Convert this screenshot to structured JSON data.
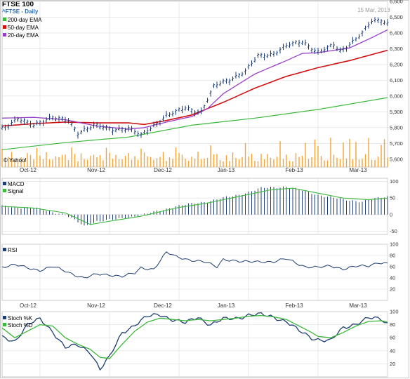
{
  "header": {
    "title": "FTSE 100",
    "subtitle": "^FTSE - Daily",
    "date": "15 Mar, 2013",
    "watermark": "© Yahoo!"
  },
  "colors": {
    "ema200": "#3cb83c",
    "ema50": "#d11111",
    "ema20": "#9a3fc9",
    "price": "#1e3d72",
    "volume": "#f2a536",
    "macd": "#1e3d72",
    "signal": "#3cb83c",
    "rsi": "#1e3d72",
    "stochK": "#1e3d72",
    "stochD": "#3cb83c",
    "grid": "#dcdcdc"
  },
  "chart_data": [
    {
      "type": "line",
      "panel": "price",
      "title": "FTSE 100",
      "ylim": [
        5550,
        6600
      ],
      "yticks": [
        "5,600",
        "5,700",
        "5,800",
        "5,900",
        "6,000",
        "6,100",
        "6,200",
        "6,300",
        "6,400",
        "6,500",
        "6,600"
      ],
      "xticks": [
        "Oct-12",
        "Nov-12",
        "Dec-12",
        "Jan-13",
        "Feb-13",
        "Mar-13"
      ],
      "grid": true,
      "legend_position": "top-left",
      "price_anchors": [
        [
          0,
          5790
        ],
        [
          5,
          5860
        ],
        [
          10,
          5810
        ],
        [
          16,
          5870
        ],
        [
          21,
          5840
        ],
        [
          24,
          5760
        ],
        [
          29,
          5820
        ],
        [
          35,
          5780
        ],
        [
          40,
          5800
        ],
        [
          44,
          5750
        ],
        [
          47,
          5790
        ],
        [
          52,
          5880
        ],
        [
          58,
          5920
        ],
        [
          60,
          5905
        ],
        [
          63,
          5900
        ],
        [
          67,
          6060
        ],
        [
          72,
          6100
        ],
        [
          77,
          6160
        ],
        [
          81,
          6250
        ],
        [
          85,
          6260
        ],
        [
          90,
          6320
        ],
        [
          95,
          6340
        ],
        [
          100,
          6280
        ],
        [
          105,
          6320
        ],
        [
          107,
          6280
        ],
        [
          110,
          6330
        ],
        [
          114,
          6400
        ],
        [
          117,
          6470
        ],
        [
          120,
          6480
        ],
        [
          122,
          6460
        ]
      ],
      "series": [
        {
          "name": "200-day EMA",
          "anchors": [
            [
              0,
              5660
            ],
            [
              20,
              5705
            ],
            [
              40,
              5740
            ],
            [
              60,
              5815
            ],
            [
              80,
              5860
            ],
            [
              100,
              5915
            ],
            [
              122,
              5990
            ]
          ]
        },
        {
          "name": "50-day EMA",
          "anchors": [
            [
              0,
              5810
            ],
            [
              10,
              5825
            ],
            [
              20,
              5835
            ],
            [
              30,
              5830
            ],
            [
              40,
              5830
            ],
            [
              45,
              5820
            ],
            [
              52,
              5845
            ],
            [
              60,
              5880
            ],
            [
              70,
              5960
            ],
            [
              80,
              6050
            ],
            [
              90,
              6125
            ],
            [
              100,
              6180
            ],
            [
              110,
              6225
            ],
            [
              122,
              6290
            ]
          ]
        },
        {
          "name": "20-day EMA",
          "anchors": [
            [
              0,
              5860
            ],
            [
              10,
              5865
            ],
            [
              20,
              5850
            ],
            [
              30,
              5810
            ],
            [
              40,
              5790
            ],
            [
              45,
              5800
            ],
            [
              52,
              5835
            ],
            [
              60,
              5870
            ],
            [
              65,
              5920
            ],
            [
              70,
              6015
            ],
            [
              80,
              6140
            ],
            [
              90,
              6225
            ],
            [
              95,
              6270
            ],
            [
              100,
              6275
            ],
            [
              110,
              6305
            ],
            [
              117,
              6370
            ],
            [
              122,
              6420
            ]
          ]
        }
      ]
    },
    {
      "type": "bar",
      "panel": "macd",
      "ylim": [
        -60,
        110
      ],
      "yticks": [
        "-50",
        "0",
        "50",
        "100"
      ],
      "series": [
        {
          "name": "MACD",
          "anchors": [
            [
              0,
              25
            ],
            [
              10,
              20
            ],
            [
              20,
              0
            ],
            [
              26,
              -35
            ],
            [
              30,
              -20
            ],
            [
              36,
              -15
            ],
            [
              45,
              0
            ],
            [
              55,
              25
            ],
            [
              65,
              40
            ],
            [
              75,
              60
            ],
            [
              82,
              80
            ],
            [
              90,
              85
            ],
            [
              100,
              60
            ],
            [
              108,
              45
            ],
            [
              114,
              40
            ],
            [
              122,
              55
            ]
          ]
        },
        {
          "name": "Signal",
          "anchors": [
            [
              0,
              25
            ],
            [
              10,
              20
            ],
            [
              20,
              5
            ],
            [
              28,
              -30
            ],
            [
              34,
              -20
            ],
            [
              44,
              -5
            ],
            [
              55,
              20
            ],
            [
              65,
              35
            ],
            [
              75,
              55
            ],
            [
              85,
              75
            ],
            [
              92,
              80
            ],
            [
              100,
              65
            ],
            [
              108,
              50
            ],
            [
              116,
              45
            ],
            [
              122,
              50
            ]
          ]
        }
      ]
    },
    {
      "type": "line",
      "panel": "rsi",
      "ylim": [
        0,
        100
      ],
      "yticks": [
        "20",
        "40",
        "60",
        "80",
        "100"
      ],
      "series": [
        {
          "name": "RSI",
          "anchors": [
            [
              0,
              60
            ],
            [
              4,
              63
            ],
            [
              8,
              58
            ],
            [
              12,
              54
            ],
            [
              16,
              60
            ],
            [
              20,
              52
            ],
            [
              22,
              48
            ],
            [
              26,
              40
            ],
            [
              30,
              46
            ],
            [
              34,
              46
            ],
            [
              38,
              43
            ],
            [
              42,
              48
            ],
            [
              44,
              58
            ],
            [
              48,
              56
            ],
            [
              52,
              85
            ],
            [
              55,
              78
            ],
            [
              60,
              72
            ],
            [
              64,
              68
            ],
            [
              68,
              60
            ],
            [
              70,
              74
            ],
            [
              76,
              68
            ],
            [
              82,
              70
            ],
            [
              86,
              68
            ],
            [
              90,
              74
            ],
            [
              92,
              70
            ],
            [
              96,
              60
            ],
            [
              100,
              58
            ],
            [
              104,
              62
            ],
            [
              108,
              56
            ],
            [
              112,
              60
            ],
            [
              116,
              62
            ],
            [
              119,
              68
            ],
            [
              122,
              65
            ]
          ]
        }
      ]
    },
    {
      "type": "line",
      "panel": "stochastic",
      "ylim": [
        0,
        100
      ],
      "yticks": [
        "20",
        "40",
        "60",
        "80",
        "100"
      ],
      "series": [
        {
          "name": "Stoch %K",
          "anchors": [
            [
              0,
              60
            ],
            [
              4,
              55
            ],
            [
              8,
              80
            ],
            [
              12,
              88
            ],
            [
              16,
              70
            ],
            [
              20,
              45
            ],
            [
              24,
              48
            ],
            [
              28,
              38
            ],
            [
              31,
              12
            ],
            [
              34,
              30
            ],
            [
              38,
              68
            ],
            [
              42,
              80
            ],
            [
              46,
              92
            ],
            [
              50,
              96
            ],
            [
              54,
              88
            ],
            [
              58,
              82
            ],
            [
              62,
              92
            ],
            [
              66,
              80
            ],
            [
              70,
              88
            ],
            [
              74,
              90
            ],
            [
              78,
              95
            ],
            [
              82,
              95
            ],
            [
              86,
              92
            ],
            [
              90,
              85
            ],
            [
              94,
              70
            ],
            [
              98,
              60
            ],
            [
              100,
              58
            ],
            [
              104,
              55
            ],
            [
              108,
              75
            ],
            [
              112,
              82
            ],
            [
              116,
              90
            ],
            [
              120,
              88
            ],
            [
              122,
              82
            ]
          ]
        },
        {
          "name": "Stoch %D",
          "anchors": [
            [
              0,
              75
            ],
            [
              4,
              60
            ],
            [
              8,
              70
            ],
            [
              12,
              80
            ],
            [
              16,
              78
            ],
            [
              20,
              60
            ],
            [
              24,
              50
            ],
            [
              28,
              42
            ],
            [
              31,
              30
            ],
            [
              34,
              28
            ],
            [
              38,
              50
            ],
            [
              42,
              70
            ],
            [
              46,
              84
            ],
            [
              50,
              90
            ],
            [
              54,
              88
            ],
            [
              58,
              86
            ],
            [
              62,
              88
            ],
            [
              66,
              86
            ],
            [
              70,
              88
            ],
            [
              74,
              90
            ],
            [
              78,
              93
            ],
            [
              82,
              94
            ],
            [
              86,
              92
            ],
            [
              90,
              88
            ],
            [
              94,
              78
            ],
            [
              98,
              68
            ],
            [
              100,
              62
            ],
            [
              104,
              60
            ],
            [
              108,
              68
            ],
            [
              112,
              78
            ],
            [
              116,
              85
            ],
            [
              120,
              86
            ],
            [
              122,
              84
            ]
          ]
        }
      ]
    }
  ]
}
